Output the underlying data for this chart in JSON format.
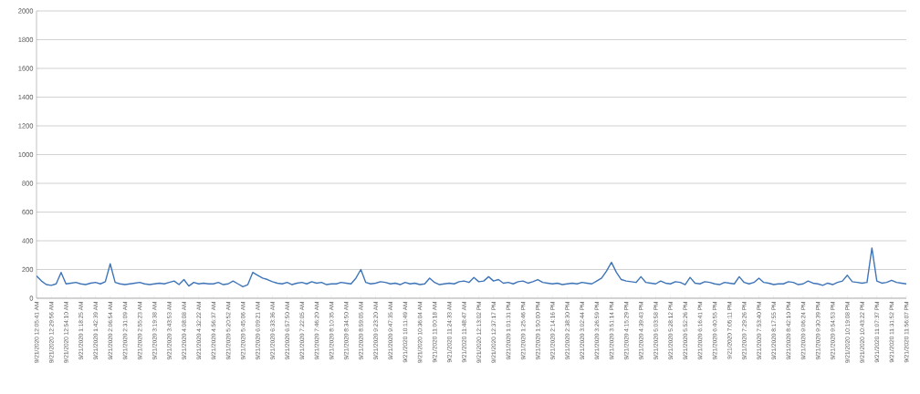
{
  "chart_data": {
    "type": "line",
    "categories": [
      "9/21/2020 12:05:41 AM",
      null,
      null,
      "9/21/2020 12:29:56 AM",
      null,
      null,
      "9/21/2020 12:54:10 AM",
      null,
      null,
      "9/21/2020 1:18:25 AM",
      null,
      null,
      "9/21/2020 1:42:39 AM",
      null,
      null,
      "9/21/2020 2:06:54 AM",
      null,
      null,
      "9/21/2020 2:31:09 AM",
      null,
      null,
      "9/21/2020 2:55:23 AM",
      null,
      null,
      "9/21/2020 3:19:38 AM",
      null,
      null,
      "9/21/2020 3:43:53 AM",
      null,
      null,
      "9/21/2020 4:08:08 AM",
      null,
      null,
      "9/21/2020 4:32:22 AM",
      null,
      null,
      "9/21/2020 4:56:37 AM",
      null,
      null,
      "9/21/2020 5:20:52 AM",
      null,
      null,
      "9/21/2020 5:45:06 AM",
      null,
      null,
      "9/21/2020 6:09:21 AM",
      null,
      null,
      "9/21/2020 6:33:36 AM",
      null,
      null,
      "9/21/2020 6:57:50 AM",
      null,
      null,
      "9/21/2020 7:22:05 AM",
      null,
      null,
      "9/21/2020 7:46:20 AM",
      null,
      null,
      "9/21/2020 8:10:35 AM",
      null,
      null,
      "9/21/2020 8:34:50 AM",
      null,
      null,
      "9/21/2020 8:59:05 AM",
      null,
      null,
      "9/21/2020 9:23:20 AM",
      null,
      null,
      "9/21/2020 9:47:35 AM",
      null,
      null,
      "9/21/2020 10:11:49 AM",
      null,
      null,
      "9/21/2020 10:36:04 AM",
      null,
      null,
      "9/21/2020 11:00:18 AM",
      null,
      null,
      "9/21/2020 11:24:33 AM",
      null,
      null,
      "9/21/2020 11:48:47 AM",
      null,
      null,
      "9/21/2020 12:13:02 PM",
      null,
      null,
      "9/21/2020 12:37:17 PM",
      null,
      null,
      "9/21/2020 1:01:31 PM",
      null,
      null,
      "9/21/2020 1:25:46 PM",
      null,
      null,
      "9/21/2020 1:50:00 PM",
      null,
      null,
      "9/21/2020 2:14:16 PM",
      null,
      null,
      "9/21/2020 2:38:30 PM",
      null,
      null,
      "9/21/2020 3:02:44 PM",
      null,
      null,
      "9/21/2020 3:26:59 PM",
      null,
      null,
      "9/21/2020 3:51:14 PM",
      null,
      null,
      "9/21/2020 4:15:29 PM",
      null,
      null,
      "9/21/2020 4:39:43 PM",
      null,
      null,
      "9/21/2020 5:03:58 PM",
      null,
      null,
      "9/21/2020 5:28:12 PM",
      null,
      null,
      "9/21/2020 5:52:26 PM",
      null,
      null,
      "9/21/2020 6:16:41 PM",
      null,
      null,
      "9/21/2020 6:40:55 PM",
      null,
      null,
      "9/21/2020 7:05:11 PM",
      null,
      null,
      "9/21/2020 7:29:26 PM",
      null,
      null,
      "9/21/2020 7:53:40 PM",
      null,
      null,
      "9/21/2020 8:17:55 PM",
      null,
      null,
      "9/21/2020 8:42:10 PM",
      null,
      null,
      "9/21/2020 9:06:24 PM",
      null,
      null,
      "9/21/2020 9:30:39 PM",
      null,
      null,
      "9/21/2020 9:54:53 PM",
      null,
      null,
      "9/21/2020 10:19:08 PM",
      null,
      null,
      "9/21/2020 10:43:22 PM",
      null,
      null,
      "9/21/2020 11:07:37 PM",
      null,
      null,
      "9/21/2020 11:31:52 PM",
      null,
      null,
      "9/21/2020 11:56:07 PM"
    ],
    "series": [
      {
        "color": "#3f75b8",
        "values": [
          155,
          120,
          95,
          90,
          100,
          180,
          100,
          105,
          110,
          100,
          95,
          105,
          110,
          100,
          115,
          240,
          110,
          100,
          95,
          100,
          105,
          110,
          100,
          95,
          100,
          105,
          100,
          110,
          120,
          95,
          130,
          85,
          110,
          100,
          105,
          100,
          100,
          110,
          95,
          100,
          120,
          100,
          80,
          95,
          180,
          160,
          140,
          130,
          115,
          105,
          100,
          110,
          95,
          105,
          110,
          100,
          115,
          105,
          110,
          95,
          100,
          100,
          110,
          105,
          100,
          140,
          200,
          110,
          100,
          105,
          115,
          110,
          100,
          105,
          95,
          110,
          100,
          105,
          95,
          100,
          140,
          110,
          95,
          100,
          105,
          100,
          115,
          120,
          110,
          145,
          115,
          120,
          150,
          120,
          130,
          105,
          110,
          100,
          115,
          120,
          105,
          115,
          130,
          110,
          105,
          100,
          105,
          95,
          100,
          105,
          100,
          110,
          105,
          100,
          120,
          140,
          190,
          250,
          180,
          130,
          120,
          115,
          110,
          150,
          110,
          105,
          100,
          120,
          105,
          100,
          115,
          110,
          95,
          145,
          105,
          100,
          115,
          110,
          100,
          95,
          110,
          105,
          100,
          150,
          110,
          100,
          110,
          140,
          110,
          105,
          95,
          100,
          100,
          115,
          110,
          95,
          100,
          120,
          105,
          100,
          90,
          105,
          95,
          110,
          120,
          160,
          115,
          110,
          105,
          110,
          350,
          120,
          105,
          110,
          125,
          110,
          105,
          100
        ]
      }
    ],
    "ylim": [
      0,
      2000
    ],
    "yticks": [
      0,
      200,
      400,
      600,
      800,
      1000,
      1200,
      1400,
      1600,
      1800,
      2000
    ],
    "grid": "y",
    "marker": "none",
    "line_style": "solid"
  }
}
